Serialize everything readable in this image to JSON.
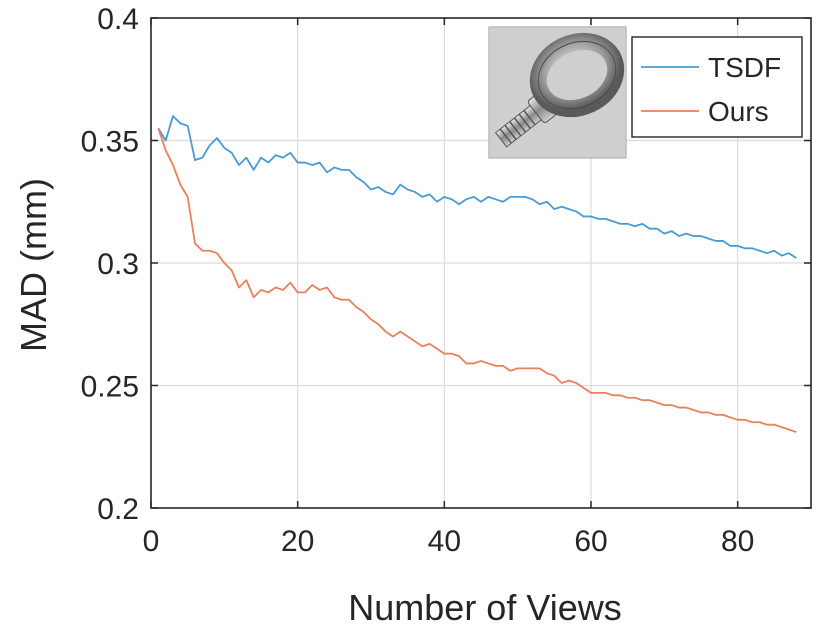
{
  "chart_data": {
    "type": "line",
    "xlabel": "Number of Views",
    "ylabel": "MAD (mm)",
    "xlim": [
      0,
      90
    ],
    "ylim": [
      0.2,
      0.4
    ],
    "xticks": [
      0,
      20,
      40,
      60,
      80
    ],
    "yticks": [
      0.2,
      0.25,
      0.3,
      0.35,
      0.4
    ],
    "xtick_labels": [
      "0",
      "20",
      "40",
      "60",
      "80"
    ],
    "ytick_labels": [
      "0.2",
      "0.25",
      "0.3",
      "0.35",
      "0.4"
    ],
    "grid": true,
    "legend_position": "top-right",
    "inset_image": "eye-bolt-photo",
    "series": [
      {
        "name": "TSDF",
        "color": "#4a9bd4",
        "x": [
          1,
          2,
          3,
          4,
          5,
          6,
          7,
          8,
          9,
          10,
          11,
          12,
          13,
          14,
          15,
          16,
          17,
          18,
          19,
          20,
          21,
          22,
          23,
          24,
          25,
          26,
          27,
          28,
          29,
          30,
          31,
          32,
          33,
          34,
          35,
          36,
          37,
          38,
          39,
          40,
          41,
          42,
          43,
          44,
          45,
          46,
          47,
          48,
          49,
          50,
          51,
          52,
          53,
          54,
          55,
          56,
          57,
          58,
          59,
          60,
          61,
          62,
          63,
          64,
          65,
          66,
          67,
          68,
          69,
          70,
          71,
          72,
          73,
          74,
          75,
          76,
          77,
          78,
          79,
          80,
          81,
          82,
          83,
          84,
          85,
          86,
          87,
          88
        ],
        "y": [
          0.355,
          0.35,
          0.36,
          0.357,
          0.356,
          0.342,
          0.343,
          0.348,
          0.351,
          0.347,
          0.345,
          0.34,
          0.343,
          0.338,
          0.343,
          0.341,
          0.344,
          0.343,
          0.345,
          0.341,
          0.341,
          0.34,
          0.341,
          0.337,
          0.339,
          0.338,
          0.338,
          0.335,
          0.333,
          0.33,
          0.331,
          0.329,
          0.328,
          0.332,
          0.33,
          0.329,
          0.327,
          0.328,
          0.325,
          0.327,
          0.326,
          0.324,
          0.326,
          0.327,
          0.325,
          0.327,
          0.326,
          0.325,
          0.327,
          0.327,
          0.327,
          0.326,
          0.324,
          0.325,
          0.322,
          0.323,
          0.322,
          0.321,
          0.319,
          0.319,
          0.318,
          0.318,
          0.317,
          0.316,
          0.316,
          0.315,
          0.316,
          0.314,
          0.314,
          0.312,
          0.313,
          0.311,
          0.312,
          0.311,
          0.311,
          0.31,
          0.309,
          0.309,
          0.307,
          0.307,
          0.306,
          0.306,
          0.305,
          0.304,
          0.305,
          0.303,
          0.304,
          0.302
        ]
      },
      {
        "name": "Ours",
        "color": "#e8805a",
        "x": [
          1,
          2,
          3,
          4,
          5,
          6,
          7,
          8,
          9,
          10,
          11,
          12,
          13,
          14,
          15,
          16,
          17,
          18,
          19,
          20,
          21,
          22,
          23,
          24,
          25,
          26,
          27,
          28,
          29,
          30,
          31,
          32,
          33,
          34,
          35,
          36,
          37,
          38,
          39,
          40,
          41,
          42,
          43,
          44,
          45,
          46,
          47,
          48,
          49,
          50,
          51,
          52,
          53,
          54,
          55,
          56,
          57,
          58,
          59,
          60,
          61,
          62,
          63,
          64,
          65,
          66,
          67,
          68,
          69,
          70,
          71,
          72,
          73,
          74,
          75,
          76,
          77,
          78,
          79,
          80,
          81,
          82,
          83,
          84,
          85,
          86,
          87,
          88
        ],
        "y": [
          0.355,
          0.346,
          0.34,
          0.332,
          0.327,
          0.308,
          0.305,
          0.305,
          0.304,
          0.3,
          0.297,
          0.29,
          0.293,
          0.286,
          0.289,
          0.288,
          0.29,
          0.289,
          0.292,
          0.288,
          0.288,
          0.291,
          0.289,
          0.29,
          0.286,
          0.285,
          0.285,
          0.282,
          0.28,
          0.277,
          0.275,
          0.272,
          0.27,
          0.272,
          0.27,
          0.268,
          0.266,
          0.267,
          0.265,
          0.263,
          0.263,
          0.262,
          0.259,
          0.259,
          0.26,
          0.259,
          0.258,
          0.258,
          0.256,
          0.257,
          0.257,
          0.257,
          0.257,
          0.255,
          0.254,
          0.251,
          0.252,
          0.251,
          0.249,
          0.247,
          0.247,
          0.247,
          0.246,
          0.246,
          0.245,
          0.245,
          0.244,
          0.244,
          0.243,
          0.242,
          0.242,
          0.241,
          0.241,
          0.24,
          0.239,
          0.239,
          0.238,
          0.238,
          0.237,
          0.236,
          0.236,
          0.235,
          0.235,
          0.234,
          0.234,
          0.233,
          0.232,
          0.231
        ]
      }
    ]
  }
}
